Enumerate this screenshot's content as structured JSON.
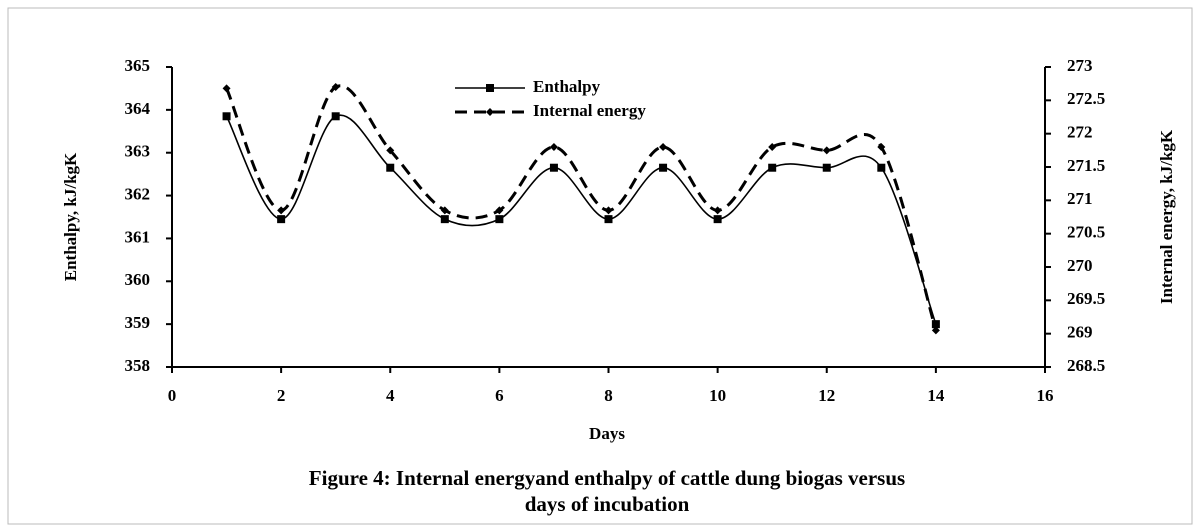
{
  "chart_data": {
    "type": "line",
    "title": [
      "Figure 4: Internal energyand enthalpy of cattle dung biogas versus",
      "days of incubation"
    ],
    "xlabel": "Days",
    "ylabel": "Enthalpy, kJ/kgK",
    "y2label": "Internal energy, kJ/kgK",
    "x": [
      1,
      2,
      3,
      4,
      5,
      6,
      7,
      8,
      9,
      10,
      11,
      12,
      13,
      14
    ],
    "series": [
      {
        "name": "Enthalpy",
        "color": "#000000",
        "line_style": "solid",
        "marker": "square",
        "values": [
          363.85,
          361.45,
          363.85,
          362.65,
          361.45,
          361.45,
          362.65,
          361.45,
          362.65,
          361.45,
          362.65,
          362.65,
          362.65,
          359.0
        ]
      },
      {
        "name": "Internal energy",
        "color": "#000000",
        "line_style": "dashed",
        "marker": "diamond",
        "axis": "y2",
        "values": [
          272.68,
          270.85,
          272.7,
          271.75,
          270.85,
          270.85,
          271.8,
          270.85,
          271.8,
          270.85,
          271.8,
          271.75,
          271.8,
          269.05
        ]
      }
    ],
    "xlim": [
      0,
      16
    ],
    "xticks": [
      0,
      2,
      4,
      6,
      8,
      10,
      12,
      14,
      16
    ],
    "ylim": [
      358,
      365
    ],
    "yticks": [
      358,
      359,
      360,
      361,
      362,
      363,
      364,
      365
    ],
    "y2lim": [
      268.5,
      273
    ],
    "y2ticks": [
      268.5,
      269,
      269.5,
      270,
      270.5,
      271,
      271.5,
      272,
      272.5,
      273
    ],
    "smooth": true,
    "legend": "top"
  }
}
